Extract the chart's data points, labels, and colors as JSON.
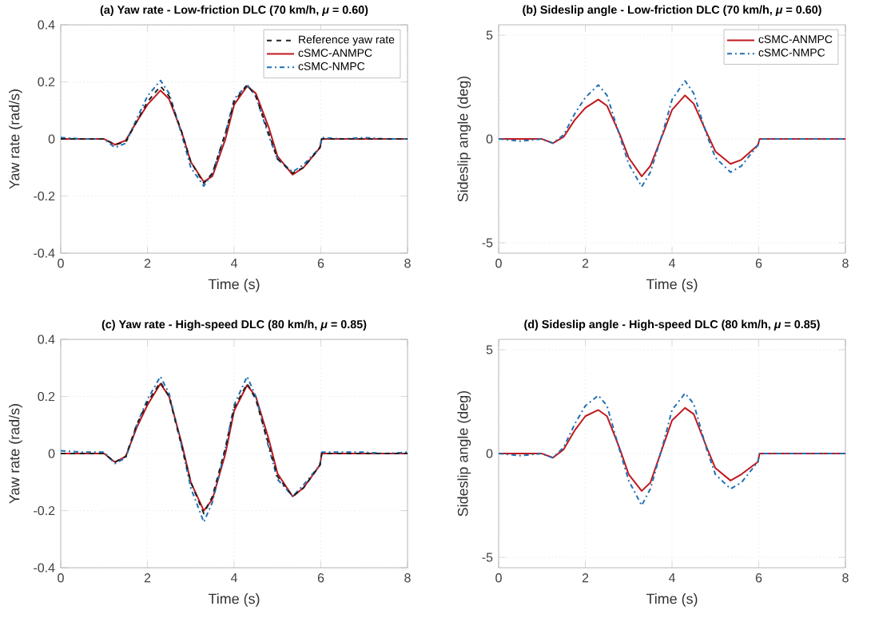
{
  "chart_data": [
    {
      "type": "line",
      "title": "(a) Yaw rate - Low-friction DLC (70 km/h, *μ* = 0.60)",
      "xlabel": "Time (s)",
      "ylabel": "Yaw rate (rad/s)",
      "xlim": [
        0,
        8
      ],
      "ylim": [
        -0.4,
        0.4
      ],
      "xticks": [
        0,
        2,
        4,
        6,
        8
      ],
      "yticks": [
        -0.4,
        -0.2,
        0,
        0.2,
        0.4
      ],
      "grid": true,
      "legend": "top right",
      "marker": "none",
      "x": [
        0,
        0.5,
        1.0,
        1.25,
        1.5,
        1.75,
        2.0,
        2.3,
        2.5,
        2.8,
        3.0,
        3.3,
        3.5,
        3.8,
        4.0,
        4.3,
        4.5,
        4.8,
        5.0,
        5.35,
        5.6,
        5.98,
        6.02,
        6.5,
        7,
        7.5,
        8
      ],
      "series": [
        {
          "name": "Reference yaw rate",
          "color": "#222222",
          "line_style": "dashed",
          "values": [
            0,
            0,
            0,
            -0.02,
            -0.01,
            0.06,
            0.13,
            0.185,
            0.15,
            0.02,
            -0.08,
            -0.155,
            -0.12,
            0.02,
            0.13,
            0.19,
            0.15,
            0.02,
            -0.07,
            -0.12,
            -0.1,
            -0.03,
            0,
            0,
            0,
            0,
            0
          ]
        },
        {
          "name": "cSMC-ANMPC",
          "color": "#c0181e",
          "line_style": "solid",
          "values": [
            0,
            0,
            0,
            -0.02,
            -0.005,
            0.06,
            0.12,
            0.17,
            0.14,
            0.02,
            -0.08,
            -0.15,
            -0.13,
            0.0,
            0.12,
            0.185,
            0.16,
            0.04,
            -0.06,
            -0.125,
            -0.1,
            -0.03,
            0,
            0,
            0,
            0,
            0
          ]
        },
        {
          "name": "cSMC-NMPC",
          "color": "#1f6fb4",
          "line_style": "dashdot",
          "values": [
            0.005,
            0,
            0,
            -0.03,
            -0.015,
            0.07,
            0.15,
            0.205,
            0.16,
            0.01,
            -0.1,
            -0.165,
            -0.12,
            0.02,
            0.14,
            0.19,
            0.15,
            0.01,
            -0.07,
            -0.115,
            -0.09,
            -0.03,
            0.005,
            0,
            0.005,
            0,
            0
          ]
        }
      ]
    },
    {
      "type": "line",
      "title": "(b) Sideslip angle - Low-friction DLC (70 km/h, *μ* = 0.60)",
      "xlabel": "Time (s)",
      "ylabel": "Sideslip angle (deg)",
      "xlim": [
        0,
        8
      ],
      "ylim": [
        -5.5,
        5.5
      ],
      "xticks": [
        0,
        2,
        4,
        6,
        8
      ],
      "yticks": [
        -5,
        0,
        5
      ],
      "grid": true,
      "legend": "top right",
      "marker": "none",
      "x": [
        0,
        0.5,
        1.0,
        1.25,
        1.5,
        1.75,
        2.0,
        2.3,
        2.5,
        2.8,
        3.0,
        3.3,
        3.5,
        3.8,
        4.0,
        4.3,
        4.5,
        4.8,
        5.0,
        5.35,
        5.6,
        5.98,
        6.02,
        6.5,
        7,
        7.5,
        8
      ],
      "series": [
        {
          "name": "cSMC-ANMPC",
          "color": "#c0181e",
          "line_style": "solid",
          "values": [
            0,
            0,
            0,
            -0.2,
            0.1,
            0.9,
            1.5,
            1.9,
            1.6,
            0.2,
            -0.9,
            -1.8,
            -1.3,
            0.3,
            1.4,
            2.1,
            1.7,
            0.3,
            -0.6,
            -1.2,
            -1.0,
            -0.3,
            0,
            0,
            0,
            0,
            0
          ]
        },
        {
          "name": "cSMC-NMPC",
          "color": "#1f6fb4",
          "line_style": "dashdot",
          "values": [
            0,
            -0.1,
            0,
            -0.2,
            0.2,
            1.2,
            2.0,
            2.6,
            2.1,
            0.1,
            -1.2,
            -2.3,
            -1.6,
            0.4,
            1.9,
            2.8,
            2.2,
            0.2,
            -0.9,
            -1.6,
            -1.3,
            -0.3,
            0,
            0,
            0,
            0,
            0
          ]
        }
      ]
    },
    {
      "type": "line",
      "title": "(c) Yaw rate - High-speed DLC (80 km/h, *μ* = 0.85)",
      "xlabel": "Time (s)",
      "ylabel": "Yaw rate (rad/s)",
      "xlim": [
        0,
        8
      ],
      "ylim": [
        -0.4,
        0.4
      ],
      "xticks": [
        0,
        2,
        4,
        6,
        8
      ],
      "yticks": [
        -0.4,
        -0.2,
        0,
        0.2,
        0.4
      ],
      "grid": true,
      "marker": "none",
      "x": [
        0,
        0.5,
        1.0,
        1.25,
        1.5,
        1.75,
        2.0,
        2.3,
        2.5,
        2.8,
        3.0,
        3.3,
        3.5,
        3.8,
        4.0,
        4.3,
        4.5,
        4.8,
        5.0,
        5.35,
        5.6,
        5.98,
        6.02,
        6.5,
        7,
        7.5,
        8
      ],
      "series": [
        {
          "color": "#222222",
          "line_style": "dashed",
          "values": [
            0,
            0,
            0,
            -0.03,
            -0.01,
            0.1,
            0.18,
            0.25,
            0.2,
            0.02,
            -0.1,
            -0.21,
            -0.15,
            0.02,
            0.16,
            0.245,
            0.19,
            0.03,
            -0.08,
            -0.15,
            -0.12,
            -0.04,
            0,
            0,
            0,
            0,
            0
          ]
        },
        {
          "color": "#c0181e",
          "line_style": "solid",
          "values": [
            0,
            0,
            0,
            -0.03,
            -0.01,
            0.09,
            0.17,
            0.245,
            0.2,
            0.03,
            -0.1,
            -0.2,
            -0.16,
            0.0,
            0.15,
            0.24,
            0.2,
            0.05,
            -0.07,
            -0.15,
            -0.12,
            -0.04,
            0,
            0,
            0,
            0,
            0
          ]
        },
        {
          "color": "#1f6fb4",
          "line_style": "dashdot",
          "values": [
            0.01,
            0.005,
            0.005,
            -0.035,
            -0.015,
            0.1,
            0.19,
            0.27,
            0.21,
            0.02,
            -0.12,
            -0.24,
            -0.17,
            0.02,
            0.17,
            0.27,
            0.2,
            0.02,
            -0.09,
            -0.15,
            -0.11,
            -0.04,
            0.005,
            0.005,
            0.005,
            0,
            0.005
          ]
        }
      ]
    },
    {
      "type": "line",
      "title": "(d) Sideslip angle - High-speed DLC (80 km/h, *μ* = 0.85)",
      "xlabel": "Time (s)",
      "ylabel": "Sideslip angle (deg)",
      "xlim": [
        0,
        8
      ],
      "ylim": [
        -5.5,
        5.5
      ],
      "xticks": [
        0,
        2,
        4,
        6,
        8
      ],
      "yticks": [
        -5,
        0,
        5
      ],
      "grid": true,
      "marker": "none",
      "x": [
        0,
        0.5,
        1.0,
        1.25,
        1.5,
        1.75,
        2.0,
        2.3,
        2.5,
        2.8,
        3.0,
        3.3,
        3.5,
        3.8,
        4.0,
        4.3,
        4.5,
        4.8,
        5.0,
        5.35,
        5.6,
        5.98,
        6.02,
        6.5,
        7,
        7.5,
        8
      ],
      "series": [
        {
          "color": "#c0181e",
          "line_style": "solid",
          "values": [
            0,
            0,
            0,
            -0.2,
            0.2,
            1.1,
            1.8,
            2.1,
            1.8,
            0.2,
            -1.0,
            -1.8,
            -1.4,
            0.4,
            1.6,
            2.2,
            1.9,
            0.3,
            -0.7,
            -1.3,
            -1.0,
            -0.4,
            0,
            0,
            0,
            0,
            0
          ]
        },
        {
          "color": "#1f6fb4",
          "line_style": "dashdot",
          "values": [
            0,
            -0.1,
            0,
            -0.2,
            0.3,
            1.4,
            2.3,
            2.8,
            2.3,
            0.1,
            -1.3,
            -2.5,
            -1.7,
            0.5,
            2.1,
            2.9,
            2.4,
            0.2,
            -1.0,
            -1.7,
            -1.4,
            -0.4,
            0,
            0,
            0,
            0,
            0
          ]
        }
      ]
    }
  ]
}
